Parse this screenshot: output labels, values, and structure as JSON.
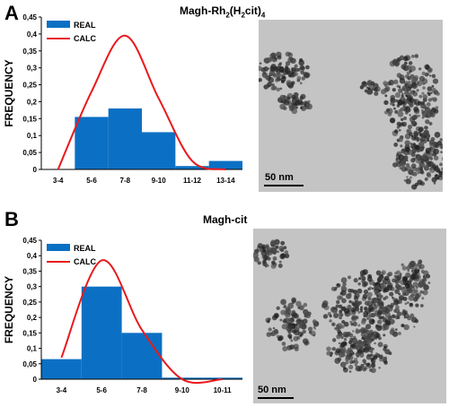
{
  "panels": [
    {
      "letter": "A",
      "title_main": "Magh-Rh",
      "title_sub1": "2",
      "title_mid": "(H",
      "title_sub2": "2",
      "title_tail": "cit)",
      "title_sub3": "4",
      "scale_label": "50 nm"
    },
    {
      "letter": "B",
      "title_main": "Magh-cit",
      "scale_label": "50 nm"
    }
  ],
  "colors": {
    "bar": "#0b70c4",
    "curve": "#e8191c",
    "tem_bg": "#c4c4c4",
    "particle": "#2a2a2a"
  },
  "chart_data": [
    {
      "type": "bar",
      "ylabel": "FREQUENCY",
      "ylim": [
        0,
        0.45
      ],
      "yticks": [
        "0",
        "0,05",
        "0,1",
        "0,15",
        "0,2",
        "0,25",
        "0,3",
        "0,35",
        "0,4",
        "0,45"
      ],
      "categories": [
        "3-4",
        "5-6",
        "7-8",
        "9-10",
        "11-12",
        "13-14"
      ],
      "series": [
        {
          "name": "REAL",
          "type": "bar",
          "values": [
            0.0,
            0.155,
            0.18,
            0.11,
            0.01,
            0.025
          ]
        },
        {
          "name": "CALC",
          "type": "line",
          "values": [
            0.0,
            0.23,
            0.395,
            0.21,
            0.025,
            0.0
          ]
        }
      ],
      "legend": "top-left"
    },
    {
      "type": "bar",
      "ylabel": "FREQUENCY",
      "ylim": [
        0,
        0.45
      ],
      "yticks": [
        "0",
        "0,05",
        "0,1",
        "0,15",
        "0,2",
        "0,25",
        "0,3",
        "0,35",
        "0,4",
        "0,45"
      ],
      "categories": [
        "3-4",
        "5-6",
        "7-8",
        "9-10",
        "10-11"
      ],
      "series": [
        {
          "name": "REAL",
          "type": "bar",
          "values": [
            0.065,
            0.3,
            0.15,
            0.005,
            0.005
          ]
        },
        {
          "name": "CALC",
          "type": "line",
          "values": [
            0.07,
            0.385,
            0.16,
            0.0,
            0.0
          ]
        }
      ],
      "legend": "top-left"
    }
  ]
}
